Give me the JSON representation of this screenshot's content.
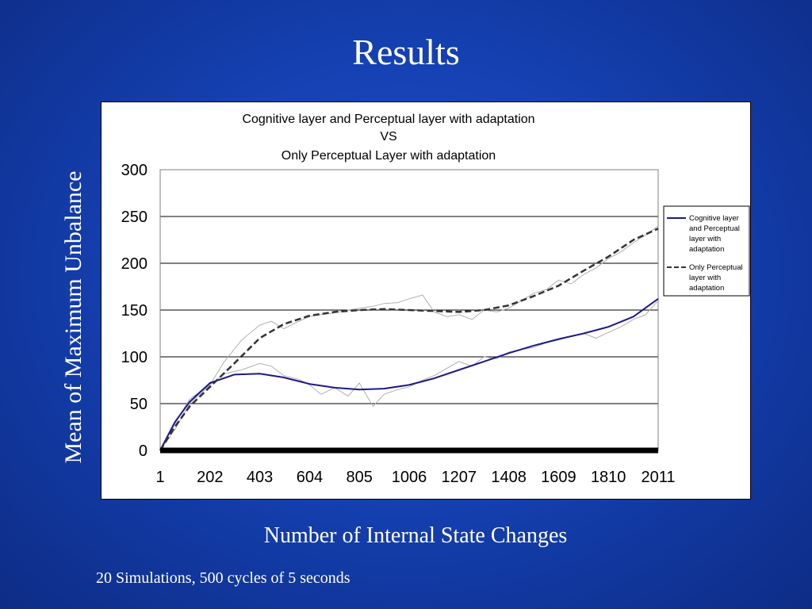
{
  "slide": {
    "title": "Results",
    "y_axis_label": "Mean  of Maximum Unbalance",
    "x_axis_label": "Number of Internal State Changes",
    "footnote": "20 Simulations, 500 cycles of 5 seconds"
  },
  "chart_data": {
    "type": "line",
    "title_lines": [
      "Cognitive layer and Perceptual layer with adaptation",
      "VS",
      "Only Perceptual Layer with adaptation"
    ],
    "x_ticks": [
      "1",
      "202",
      "403",
      "604",
      "805",
      "1006",
      "1207",
      "1408",
      "1609",
      "1810",
      "2011"
    ],
    "y_ticks": [
      "0",
      "50",
      "100",
      "150",
      "200",
      "250",
      "300"
    ],
    "xlim": [
      1,
      2011
    ],
    "ylim": [
      0,
      300
    ],
    "grid": "horizontal",
    "legend_position": "right",
    "series": [
      {
        "name": "Cognitive layer and Perceptual layer with adaptation",
        "style": "solid",
        "color": "#1a1a8c",
        "x": [
          1,
          60,
          120,
          202,
          300,
          403,
          500,
          604,
          705,
          805,
          905,
          1006,
          1107,
          1207,
          1308,
          1408,
          1509,
          1609,
          1710,
          1810,
          1911,
          2011
        ],
        "y": [
          0,
          30,
          52,
          72,
          81,
          82,
          78,
          71,
          67,
          65,
          66,
          70,
          77,
          86,
          95,
          104,
          112,
          119,
          125,
          132,
          143,
          162
        ]
      },
      {
        "name": "Only Perceptual layer with adaptation",
        "style": "dashed",
        "color": "#333333",
        "x": [
          1,
          60,
          120,
          202,
          300,
          403,
          500,
          604,
          705,
          805,
          905,
          1006,
          1107,
          1207,
          1308,
          1408,
          1509,
          1609,
          1710,
          1810,
          1911,
          2011
        ],
        "y": [
          0,
          25,
          47,
          68,
          93,
          120,
          135,
          144,
          148,
          150,
          151,
          150,
          149,
          148,
          150,
          155,
          165,
          176,
          192,
          207,
          225,
          237
        ]
      }
    ],
    "raw_traces": [
      {
        "color": "#b0b0b0",
        "x": [
          1,
          60,
          120,
          202,
          260,
          330,
          403,
          450,
          500,
          560,
          604,
          650,
          705,
          760,
          805,
          860,
          905,
          960,
          1006,
          1060,
          1107,
          1160,
          1207,
          1260,
          1308,
          1360,
          1408,
          1460,
          1509,
          1560,
          1609,
          1660,
          1710,
          1760,
          1810,
          1860,
          1911,
          1960,
          2011
        ],
        "y": [
          0,
          28,
          55,
          70,
          82,
          86,
          93,
          90,
          80,
          76,
          70,
          60,
          67,
          58,
          72,
          47,
          60,
          65,
          68,
          75,
          80,
          88,
          95,
          90,
          100,
          98,
          105,
          108,
          110,
          115,
          118,
          122,
          125,
          120,
          126,
          132,
          140,
          145,
          160
        ]
      },
      {
        "color": "#b0b0b0",
        "x": [
          1,
          60,
          120,
          202,
          260,
          330,
          403,
          450,
          500,
          560,
          604,
          650,
          705,
          760,
          805,
          860,
          905,
          960,
          1006,
          1060,
          1107,
          1160,
          1207,
          1260,
          1308,
          1360,
          1408,
          1460,
          1509,
          1560,
          1609,
          1660,
          1710,
          1760,
          1810,
          1860,
          1911,
          1960,
          2011
        ],
        "y": [
          0,
          22,
          50,
          70,
          95,
          118,
          134,
          138,
          130,
          138,
          143,
          145,
          147,
          150,
          152,
          154,
          157,
          158,
          162,
          166,
          148,
          143,
          145,
          140,
          150,
          148,
          152,
          160,
          168,
          172,
          182,
          178,
          188,
          195,
          205,
          212,
          222,
          230,
          240
        ]
      }
    ]
  }
}
